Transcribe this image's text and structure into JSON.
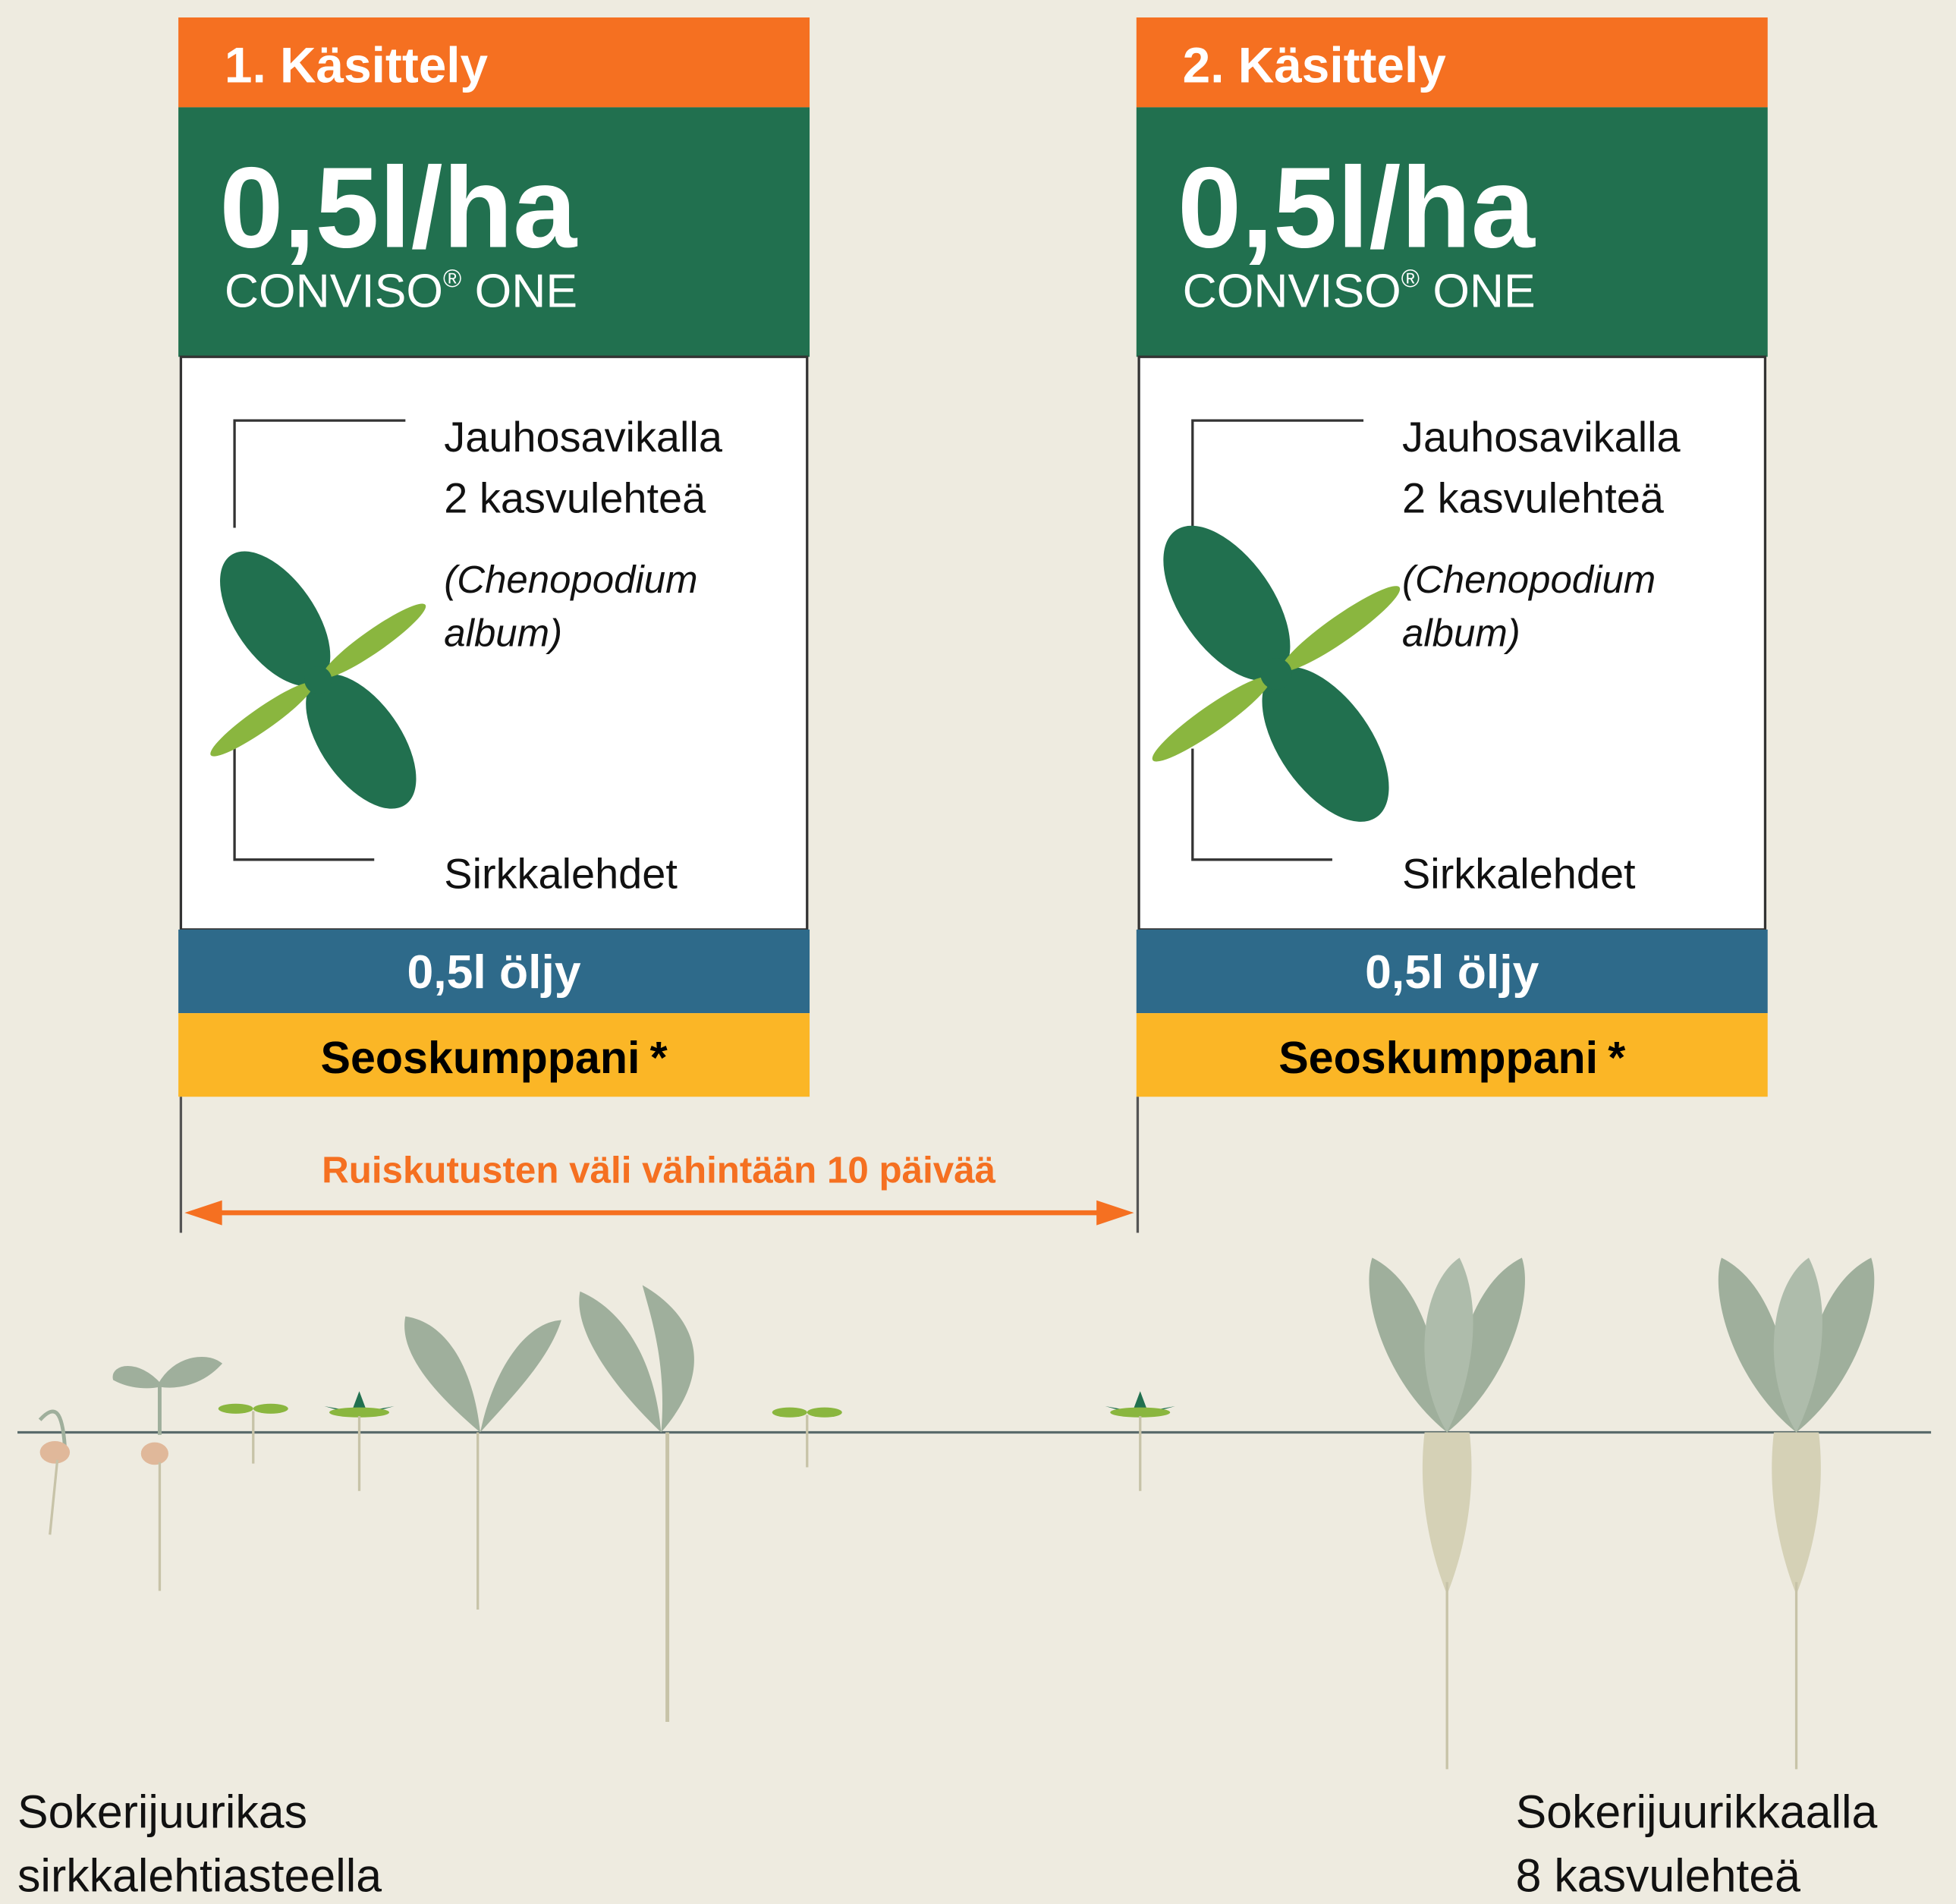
{
  "panels": [
    {
      "header": "1. Käsittely",
      "dose": "0,5l/ha",
      "product": {
        "name": "CONVISO",
        "mark": "®",
        "suffix": " ONE"
      },
      "growth_label": [
        "Jauhosavikalla",
        "2 kasvulehteä"
      ],
      "latin_name": [
        "(Chenopodium",
        "album)"
      ],
      "bottom_label": "Sirkkalehdet",
      "oil": "0,5l öljy",
      "partner": {
        "text": "Seoskumppani",
        "note": "*"
      }
    },
    {
      "header": "2. Käsittely",
      "dose": "0,5l/ha",
      "product": {
        "name": "CONVISO",
        "mark": "®",
        "suffix": " ONE"
      },
      "growth_label": [
        "Jauhosavikalla",
        "2 kasvulehteä"
      ],
      "latin_name": [
        "(Chenopodium",
        "album)"
      ],
      "bottom_label": "Sirkkalehdet",
      "oil": "0,5l öljy",
      "partner": {
        "text": "Seoskumppani",
        "note": "*"
      }
    }
  ],
  "interval": "Ruiskutusten väli vähintään 10 päivää",
  "captions": {
    "left": [
      "Sokerijuurikas",
      "sirkkalehtiasteella"
    ],
    "right": [
      "Sokerijuurikkaalla",
      "8 kasvulehteä"
    ]
  }
}
